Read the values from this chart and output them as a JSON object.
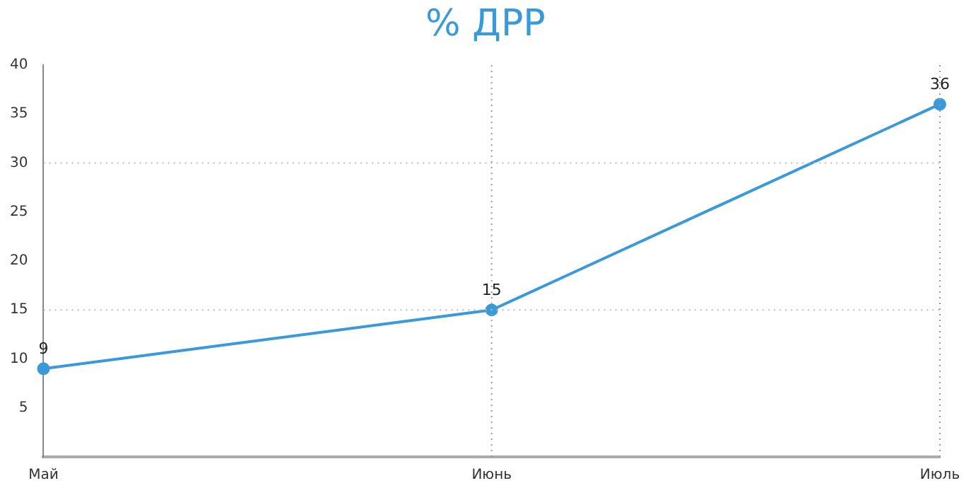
{
  "chart_data": {
    "type": "line",
    "title": "% ДРР",
    "categories": [
      "Май",
      "Июнь",
      "Июль"
    ],
    "series": [
      {
        "color": "#3a9ad9",
        "values": [
          9,
          15,
          36
        ]
      }
    ],
    "ylim": [
      0,
      40
    ],
    "yticks": [
      5,
      10,
      15,
      20,
      25,
      30,
      35,
      40
    ],
    "legend": false,
    "marker": "circle",
    "line_style": "solid",
    "data_labels": true,
    "ref_lines": [
      {
        "axis": "x",
        "value": "Июнь",
        "color": "#999999",
        "line_style": "dotted"
      },
      {
        "axis": "x",
        "value": "Июль",
        "color": "#999999",
        "line_style": "dotted"
      },
      {
        "axis": "y",
        "value": 15,
        "color": "#bbbbbb",
        "line_style": "dotted"
      },
      {
        "axis": "y",
        "value": 30,
        "color": "#bbbbbb",
        "line_style": "dotted"
      }
    ]
  }
}
